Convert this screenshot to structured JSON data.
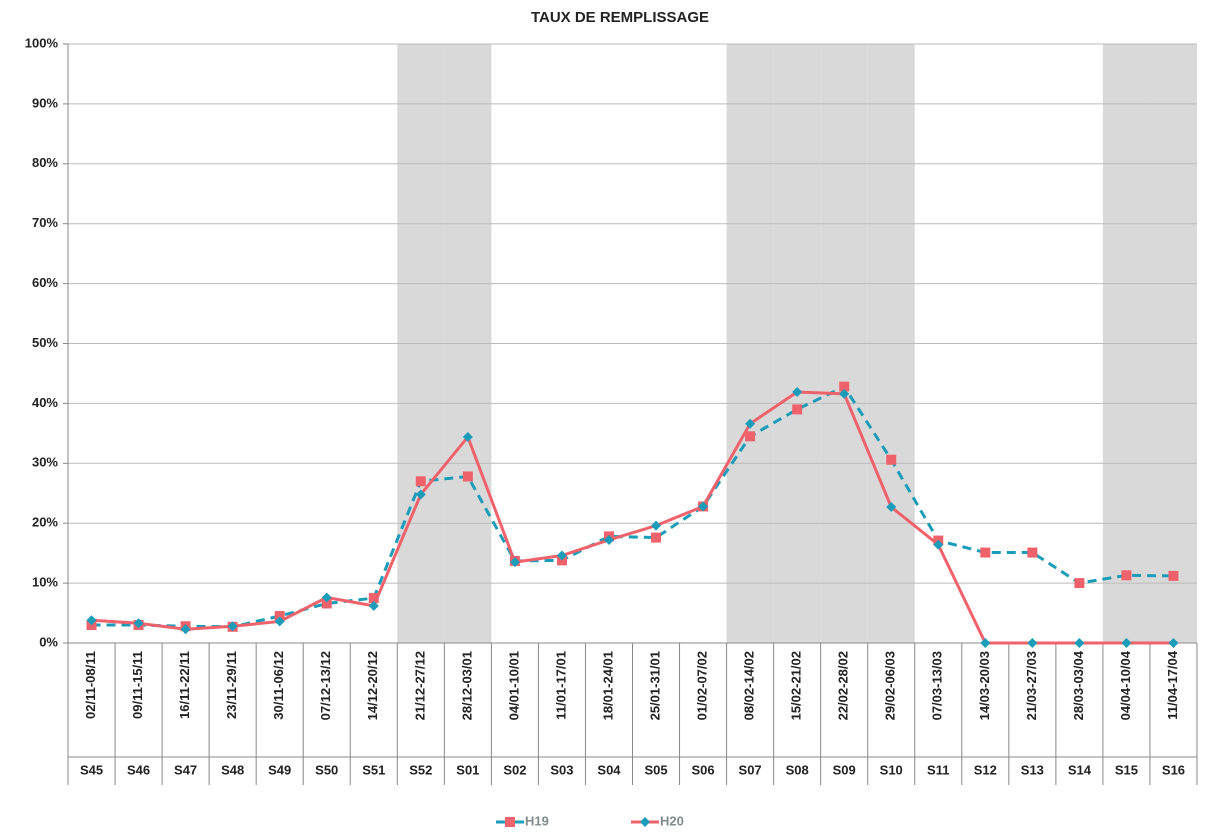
{
  "chart_data": {
    "type": "line",
    "title": "TAUX DE REMPLISSAGE",
    "categories": [
      "02/11-08/11",
      "09/11-15/11",
      "16/11-22/11",
      "23/11-29/11",
      "30/11-06/12",
      "07/12-13/12",
      "14/12-20/12",
      "21/12-27/12",
      "28/12-03/01",
      "04/01-10/01",
      "11/01-17/01",
      "18/01-24/01",
      "25/01-31/01",
      "01/02-07/02",
      "08/02-14/02",
      "15/02-21/02",
      "22/02-28/02",
      "29/02-06/03",
      "07/03-13/03",
      "14/03-20/03",
      "21/03-27/03",
      "28/03-03/04",
      "04/04-10/04",
      "11/04-17/04"
    ],
    "weeks": [
      "S45",
      "S46",
      "S47",
      "S48",
      "S49",
      "S50",
      "S51",
      "S52",
      "S01",
      "S02",
      "S03",
      "S04",
      "S05",
      "S06",
      "S07",
      "S08",
      "S09",
      "S10",
      "S11",
      "S12",
      "S13",
      "S14",
      "S15",
      "S16"
    ],
    "shaded": [
      false,
      false,
      false,
      false,
      false,
      false,
      false,
      true,
      true,
      false,
      false,
      false,
      false,
      false,
      true,
      true,
      true,
      true,
      false,
      false,
      false,
      false,
      true,
      true
    ],
    "shade_color": "#d9d9d9",
    "series": [
      {
        "name": "H19",
        "color": "#1b9cb8",
        "marker_color": "#f0626b",
        "marker": "square",
        "dashed": true,
        "values": [
          3.0,
          3.0,
          2.8,
          2.7,
          4.5,
          6.6,
          7.5,
          27.0,
          27.8,
          13.7,
          13.8,
          17.8,
          17.6,
          22.8,
          34.5,
          39.0,
          42.8,
          30.6,
          17.1,
          15.1,
          15.1,
          10.0,
          11.3,
          11.2
        ]
      },
      {
        "name": "H20",
        "color": "#f0626b",
        "marker_color": "#1b9cb8",
        "marker": "diamond",
        "dashed": false,
        "values": [
          3.8,
          3.3,
          2.3,
          2.8,
          3.6,
          7.6,
          6.2,
          24.8,
          34.4,
          13.5,
          14.6,
          17.2,
          19.6,
          22.8,
          36.6,
          41.9,
          41.6,
          22.7,
          16.4,
          0,
          0,
          0,
          0,
          0
        ]
      }
    ],
    "ylim": [
      0,
      100
    ],
    "yticks": [
      {
        "value": 0,
        "label": "0%"
      },
      {
        "value": 10,
        "label": "10%"
      },
      {
        "value": 20,
        "label": "20%"
      },
      {
        "value": 30,
        "label": "30%"
      },
      {
        "value": 40,
        "label": "40%"
      },
      {
        "value": 50,
        "label": "50%"
      },
      {
        "value": 60,
        "label": "60%"
      },
      {
        "value": 70,
        "label": "70%"
      },
      {
        "value": 80,
        "label": "80%"
      },
      {
        "value": 90,
        "label": "90%"
      },
      {
        "value": 100,
        "label": "100%"
      }
    ],
    "grid": true
  }
}
